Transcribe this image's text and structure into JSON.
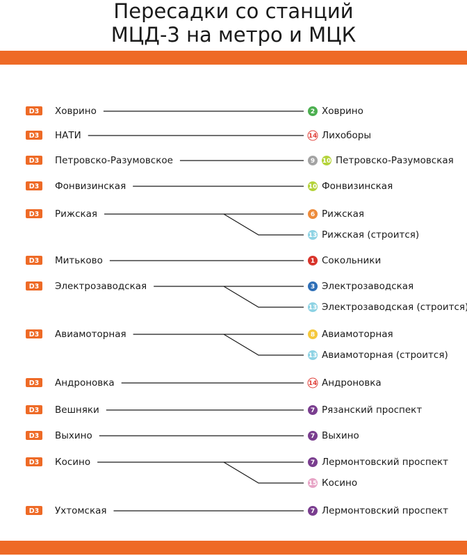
{
  "title_lines": [
    "Пересадки со станций",
    "МЦД-3 на метро и МЦК"
  ],
  "line_badge": "D3",
  "rows": [
    {
      "station": "Ховрино",
      "transfers": [
        {
          "lines": [
            {
              "number": "2",
              "color": "#4caf50"
            }
          ],
          "name": "Ховрино"
        }
      ]
    },
    {
      "station": "НАТИ",
      "transfers": [
        {
          "lines": [
            {
              "number": "14",
              "color": "#ffffff",
              "ring": "#e0413a"
            }
          ],
          "name": "Лихоборы"
        }
      ]
    },
    {
      "station": "Петровско-Разумовское",
      "transfers": [
        {
          "lines": [
            {
              "number": "9",
              "color": "#a3a3a3"
            },
            {
              "number": "10",
              "color": "#b4d33a"
            }
          ],
          "name": "Петровско-Разумовская"
        }
      ]
    },
    {
      "station": "Фонвизинская",
      "transfers": [
        {
          "lines": [
            {
              "number": "10",
              "color": "#b4d33a"
            }
          ],
          "name": "Фонвизинская"
        }
      ]
    },
    {
      "station": "Рижская",
      "transfers": [
        {
          "lines": [
            {
              "number": "6",
              "color": "#ed8b3b"
            }
          ],
          "name": "Рижская"
        },
        {
          "lines": [
            {
              "number": "13",
              "color": "#8ed3e4"
            }
          ],
          "name": "Рижская (строится)"
        }
      ]
    },
    {
      "station": "Митьково",
      "transfers": [
        {
          "lines": [
            {
              "number": "1",
              "color": "#d8342b"
            }
          ],
          "name": "Сокольники"
        }
      ]
    },
    {
      "station": "Электрозаводская",
      "transfers": [
        {
          "lines": [
            {
              "number": "3",
              "color": "#2e6fb7"
            }
          ],
          "name": "Электрозаводская"
        },
        {
          "lines": [
            {
              "number": "13",
              "color": "#8ed3e4"
            }
          ],
          "name": "Электрозаводская (строится)"
        }
      ]
    },
    {
      "station": "Авиамоторная",
      "transfers": [
        {
          "lines": [
            {
              "number": "8",
              "color": "#f5c83c"
            }
          ],
          "name": "Авиамоторная"
        },
        {
          "lines": [
            {
              "number": "13",
              "color": "#8ed3e4"
            }
          ],
          "name": "Авиамоторная (строится)"
        }
      ]
    },
    {
      "station": "Андроновка",
      "transfers": [
        {
          "lines": [
            {
              "number": "14",
              "color": "#ffffff",
              "ring": "#e0413a"
            }
          ],
          "name": "Андроновка"
        }
      ]
    },
    {
      "station": "Вешняки",
      "transfers": [
        {
          "lines": [
            {
              "number": "7",
              "color": "#7a3e8f"
            }
          ],
          "name": "Рязанский проспект"
        }
      ]
    },
    {
      "station": "Выхино",
      "transfers": [
        {
          "lines": [
            {
              "number": "7",
              "color": "#7a3e8f"
            }
          ],
          "name": "Выхино"
        }
      ]
    },
    {
      "station": "Косино",
      "transfers": [
        {
          "lines": [
            {
              "number": "7",
              "color": "#7a3e8f"
            }
          ],
          "name": "Лермонтовский проспект"
        },
        {
          "lines": [
            {
              "number": "15",
              "color": "#e7a4c6"
            }
          ],
          "name": "Косино"
        }
      ]
    },
    {
      "station": "Ухтомская",
      "transfers": [
        {
          "lines": [
            {
              "number": "7",
              "color": "#7a3e8f"
            }
          ],
          "name": "Лермонтовский проспект"
        }
      ]
    }
  ]
}
